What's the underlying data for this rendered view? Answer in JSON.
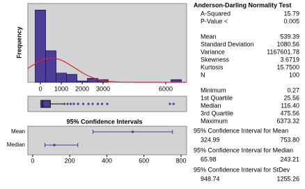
{
  "chart_data": [
    {
      "type": "histogram",
      "y_label": "Frequency",
      "bins": [
        -250,
        250,
        750,
        1250,
        1750,
        2250,
        2750,
        3250,
        3750,
        4250,
        4750,
        5250,
        5750,
        6250,
        6750
      ],
      "values": [
        55,
        24,
        7,
        6,
        1,
        3,
        2,
        0,
        0,
        0,
        0,
        0,
        0,
        2
      ],
      "color": "#4e3d96",
      "xlim": [
        -600,
        7000
      ],
      "xticks": [
        0,
        1000,
        2000,
        3000,
        6000
      ],
      "ylim": [
        0,
        60
      ],
      "fit": {
        "mean": 539.39,
        "sd": 1080.56,
        "n": 100,
        "color": "#e0202a"
      }
    },
    {
      "type": "box",
      "whislo": 0.27,
      "q1": 25.56,
      "med": 116.4,
      "q3": 475.56,
      "whishi": 1100,
      "fliers": [
        1150,
        1300,
        1450,
        1600,
        1800,
        2050,
        2300,
        2500,
        2750,
        2950,
        3200,
        6200,
        6373
      ],
      "color": "#4e3d96",
      "xlim": [
        -600,
        7000
      ]
    },
    {
      "type": "ci",
      "title": "95% Confidence Intervals",
      "categories": [
        "Mean",
        "Median"
      ],
      "values": [
        539.39,
        116.4
      ],
      "lower": [
        324.99,
        65.98
      ],
      "upper": [
        753.8,
        243.21
      ],
      "color": "#4e3d96",
      "xlim": [
        -26,
        830
      ],
      "xticks": [
        0,
        200,
        400,
        600,
        800
      ]
    }
  ],
  "summary": {
    "title": "Anderson-Darling Normality Test",
    "groups": [
      [
        [
          "A-Squared",
          "15.79"
        ],
        [
          "P-Value <",
          "0.005"
        ]
      ],
      [
        [
          "Mean",
          "539.39"
        ],
        [
          "Standard Deviation",
          "1080.56"
        ],
        [
          "Variance",
          "1167601.78"
        ],
        [
          "Skewness",
          "3.6719"
        ],
        [
          "Kurtosis",
          "15.7500"
        ],
        [
          "N",
          "100"
        ]
      ],
      [
        [
          "Minimum",
          "0.27"
        ],
        [
          "1st Quartile",
          "25.56"
        ],
        [
          "Median",
          "116.40"
        ],
        [
          "3rd Quartile",
          "475.56"
        ],
        [
          "Maximum",
          "6373.32"
        ]
      ]
    ],
    "intervals": [
      {
        "label": "95% Confidence Interval for Mean",
        "low": "324.99",
        "high": "753.80"
      },
      {
        "label": "95% Confidence Interval for Median",
        "low": "65.98",
        "high": "243.21"
      },
      {
        "label": "95% Confidence Interval for StDev",
        "low": "948.74",
        "high": "1255.26"
      }
    ]
  }
}
